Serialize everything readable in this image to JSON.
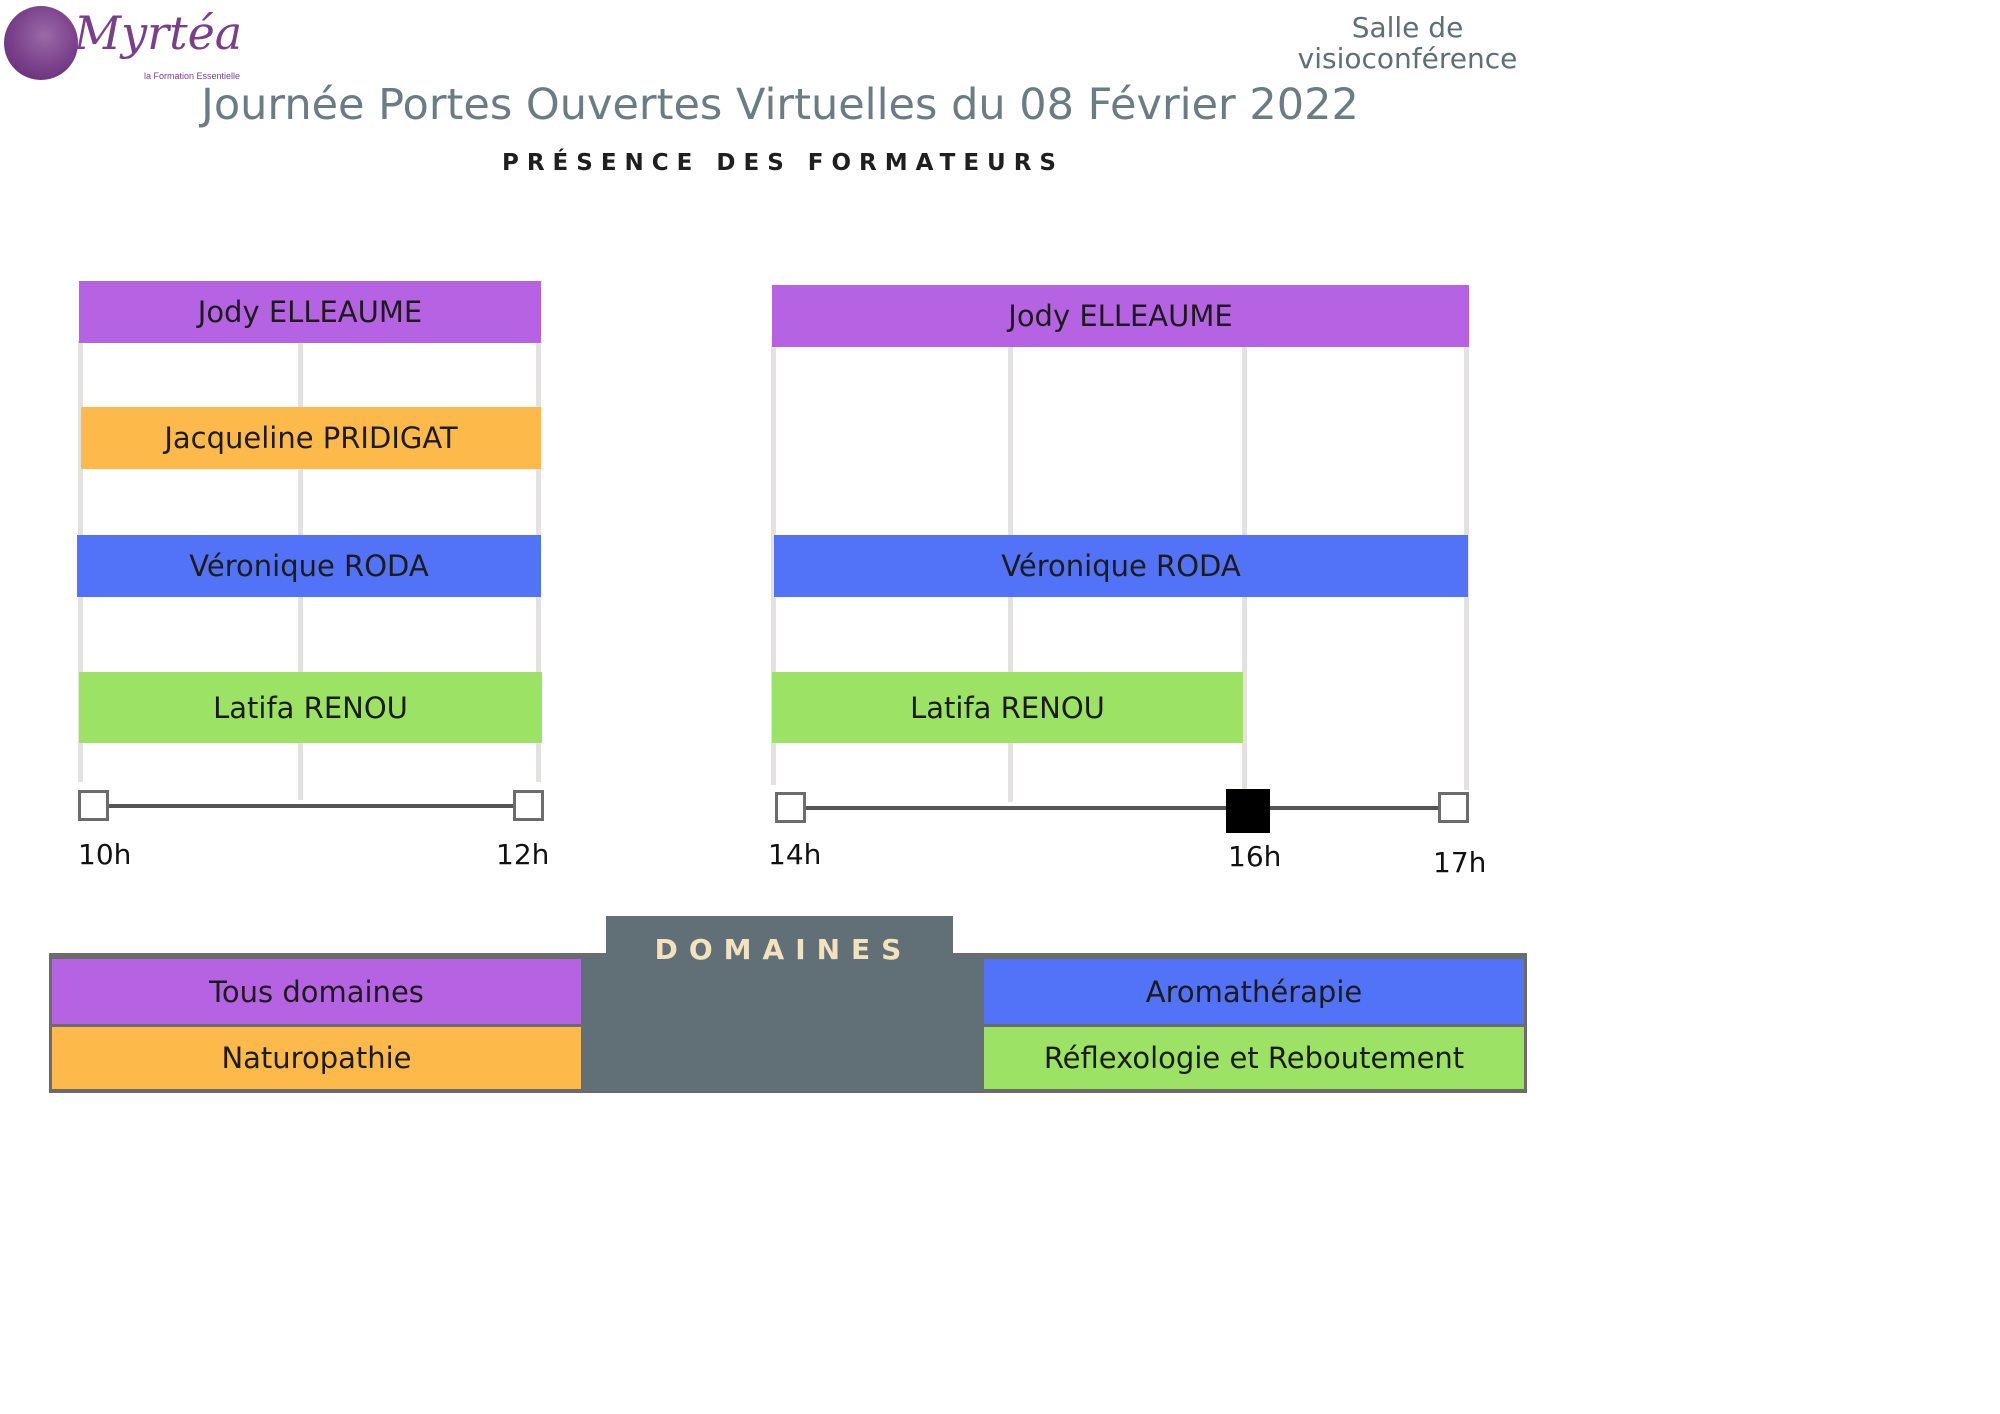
{
  "logo": {
    "name": "Myrtéa",
    "tagline": "la Formation Essentielle"
  },
  "header": {
    "room": "Salle de visioconférence",
    "title": "Journée Portes Ouvertes Virtuelles du 08 Février 2022",
    "subtitle": "PRÉSENCE DES FORMATEURS"
  },
  "colors": {
    "tous_domaines": "#b663e3",
    "naturopathie": "#fdba4a",
    "aromatherapie": "#5272f7",
    "reflexologie": "#9be265",
    "legend_panel": "#607076",
    "legend_tab_text": "#f3e2bd",
    "title": "#6a7c84"
  },
  "morning": {
    "start_label": "10h",
    "end_label": "12h",
    "bars": [
      {
        "name": "Jody ELLEAUME",
        "start": "10h",
        "end": "12h",
        "domain": "Tous domaines"
      },
      {
        "name": "Jacqueline PRIDIGAT",
        "start": "10h",
        "end": "12h",
        "domain": "Naturopathie"
      },
      {
        "name": "Véronique RODA",
        "start": "10h",
        "end": "12h",
        "domain": "Aromathérapie"
      },
      {
        "name": "Latifa RENOU",
        "start": "10h",
        "end": "12h",
        "domain": "Réflexologie et Reboutement"
      }
    ]
  },
  "afternoon": {
    "start_label": "14h",
    "mid_label": "16h",
    "end_label": "17h",
    "bars": [
      {
        "name": "Jody ELLEAUME",
        "start": "14h",
        "end": "17h",
        "domain": "Tous domaines"
      },
      {
        "name": "Véronique RODA",
        "start": "14h",
        "end": "17h",
        "domain": "Aromathérapie"
      },
      {
        "name": "Latifa RENOU",
        "start": "14h",
        "end": "16h",
        "domain": "Réflexologie et Reboutement"
      }
    ]
  },
  "legend": {
    "title": "DOMAINES",
    "items": [
      {
        "label": "Tous domaines"
      },
      {
        "label": "Naturopathie"
      },
      {
        "label": "Aromathérapie"
      },
      {
        "label": "Réflexologie et Reboutement"
      }
    ]
  }
}
